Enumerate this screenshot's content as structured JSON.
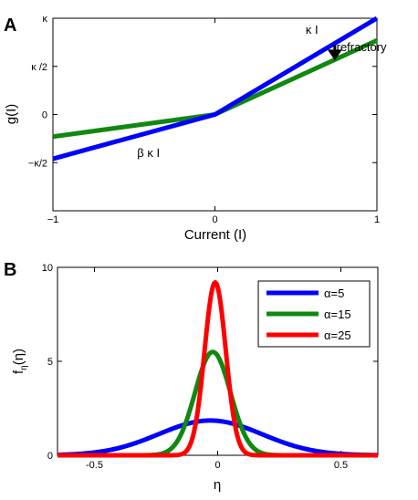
{
  "chart_data": [
    {
      "panel": "A",
      "type": "line",
      "xlabel": "Current (I)",
      "ylabel": "g(I)",
      "xlim": [
        -1,
        1
      ],
      "ylim": [
        -1,
        1
      ],
      "x_ticks": [
        {
          "v": -1,
          "label": "−1"
        },
        {
          "v": 0,
          "label": "0"
        },
        {
          "v": 1,
          "label": "1"
        }
      ],
      "y_ticks": [
        {
          "v": -0.5,
          "label": "−κ/2"
        },
        {
          "v": 0,
          "label": "0"
        },
        {
          "v": 0.5,
          "label": "κ /2"
        },
        {
          "v": 1,
          "label": "κ"
        }
      ],
      "series": [
        {
          "color": "#0000ff",
          "x": [
            -1,
            0,
            1
          ],
          "y": [
            -0.46,
            0,
            1
          ]
        },
        {
          "color": "#118811",
          "x": [
            -1,
            0,
            1
          ],
          "y": [
            -0.23,
            0,
            0.77
          ]
        }
      ],
      "annotations": [
        {
          "text": "κ I",
          "x": 0.56,
          "y": 0.84
        },
        {
          "text": "β κ I",
          "x": -0.48,
          "y": -0.44
        },
        {
          "text": "refractory",
          "x": 0.75,
          "y": 0.66
        }
      ],
      "arrow": {
        "x": 0.74,
        "y_from": 0.72,
        "y_to": 0.56
      }
    },
    {
      "panel": "B",
      "type": "line",
      "xlabel": "η",
      "ylabel": "f",
      "ylabel_sub": "η",
      "ylabel_tail": "(η)",
      "xlim": [
        -0.65,
        0.65
      ],
      "ylim": [
        0,
        10
      ],
      "x_ticks": [
        {
          "v": -0.5,
          "label": "-0.5"
        },
        {
          "v": 0,
          "label": "0"
        },
        {
          "v": 0.5,
          "label": "0.5"
        }
      ],
      "y_ticks": [
        {
          "v": 0,
          "label": "0"
        },
        {
          "v": 5,
          "label": "5"
        },
        {
          "v": 10,
          "label": "10"
        }
      ],
      "legend_position": "top-right",
      "series": [
        {
          "name": "α=5",
          "color": "#0000ff",
          "center": -0.03,
          "sigma": 0.21,
          "peak": 1.85
        },
        {
          "name": "α=15",
          "color": "#118811",
          "center": -0.02,
          "sigma": 0.072,
          "peak": 5.5
        },
        {
          "name": "α=25",
          "color": "#ff0000",
          "center": -0.01,
          "sigma": 0.043,
          "peak": 9.2
        }
      ]
    }
  ]
}
